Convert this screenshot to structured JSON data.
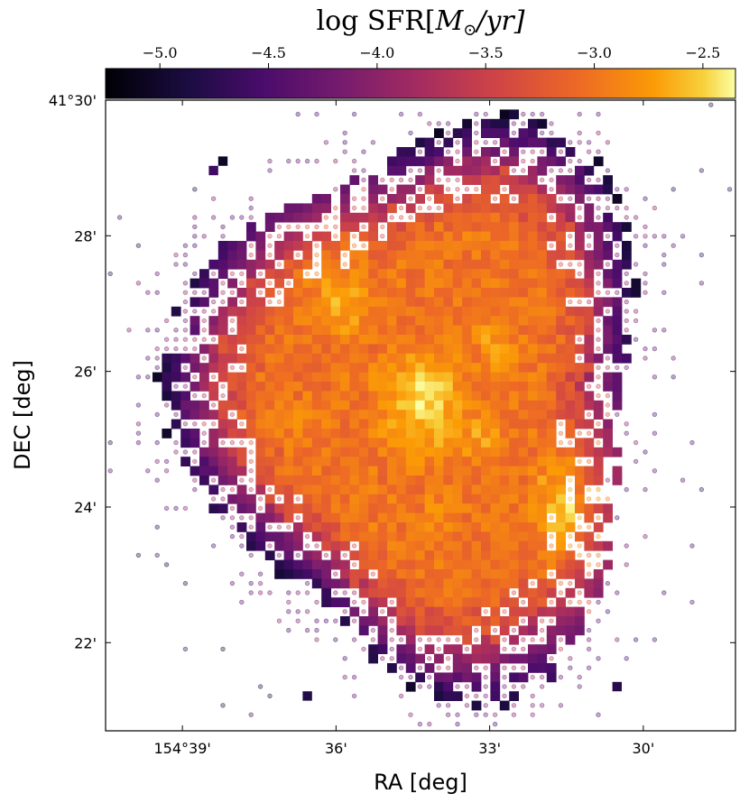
{
  "chart_data": {
    "type": "heatmap",
    "description_of_marks": "pixelized galaxy map; filled squares are binned SFR values, small faint circles mark low-significance pixels",
    "colorbar": {
      "label": "log SFR[M⊙/yr]",
      "label_parts": {
        "prefix": "log SFR[",
        "M": "M",
        "sub": "⊙",
        "suffix": "/yr]"
      },
      "range": [
        -5.25,
        -2.35
      ],
      "ticks": [
        "−5.0",
        "−4.5",
        "−4.0",
        "−3.5",
        "−3.0",
        "−2.5"
      ],
      "tick_values": [
        -5.0,
        -4.5,
        -4.0,
        -3.5,
        -3.0,
        -2.5
      ],
      "colormap": "inferno",
      "placement": "top"
    },
    "x_axis": {
      "label": "RA [deg]",
      "ticks": [
        "154°39'",
        "36'",
        "33'",
        "30'"
      ],
      "tick_minutes": [
        39,
        36,
        33,
        30
      ],
      "range_minutes": [
        40.5,
        28.2
      ],
      "inverted": true
    },
    "y_axis": {
      "label": "DEC [deg]",
      "ticks": [
        "41°30'",
        "28'",
        "26'",
        "24'",
        "22'"
      ],
      "tick_minutes": [
        30,
        28,
        26,
        24,
        22
      ],
      "range_minutes": [
        20.7,
        30
      ]
    },
    "galaxy": {
      "center_ra_min": 34.3,
      "center_dec_min": 25.55,
      "radius_arcmin": 4.1,
      "peak_logsfr": -2.4,
      "edge_logsfr": -4.3,
      "bright_knots": [
        {
          "ra": 34.3,
          "dec": 25.55,
          "logsfr": -2.4
        },
        {
          "ra": 35.9,
          "dec": 27.0,
          "logsfr": -2.6
        },
        {
          "ra": 32.9,
          "dec": 26.4,
          "logsfr": -2.7
        },
        {
          "ra": 33.2,
          "dec": 25.0,
          "logsfr": -2.7
        },
        {
          "ra": 34.0,
          "dec": 23.9,
          "logsfr": -2.8
        },
        {
          "ra": 36.6,
          "dec": 25.3,
          "logsfr": -2.85
        },
        {
          "ra": 31.5,
          "dec": 24.0,
          "logsfr": -2.5
        }
      ]
    },
    "grid": false,
    "legend": "none"
  }
}
